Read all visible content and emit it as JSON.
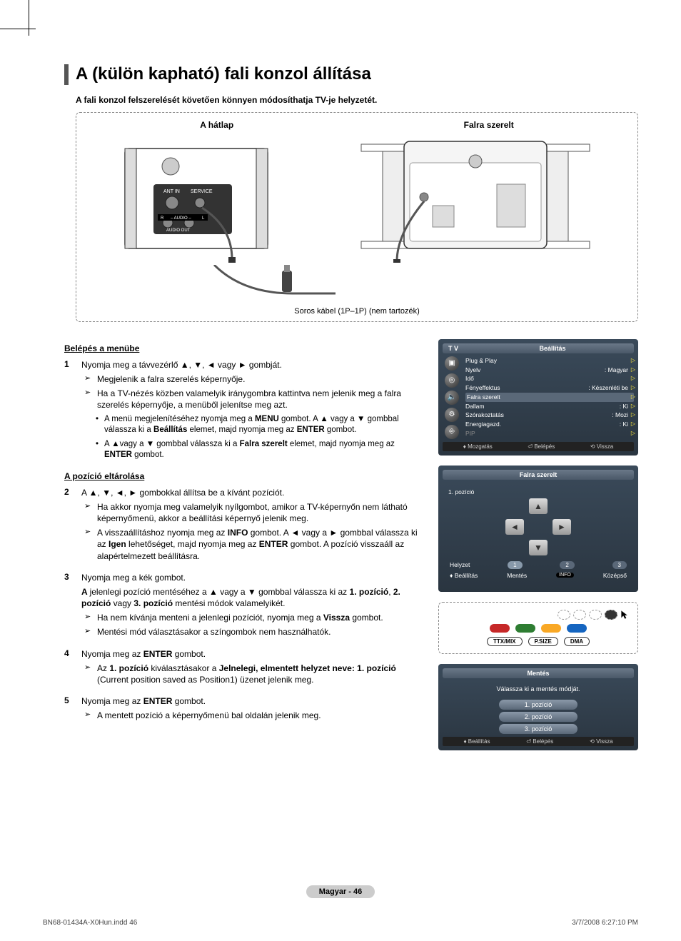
{
  "title": "A (külön kapható) fali konzol állítása",
  "subtitle": "A fali konzol felszerelését követően könnyen módosíthatja TV-je helyzetét.",
  "diagram": {
    "left_label": "A hátlap",
    "right_label": "Falra szerelt",
    "port_labels": {
      "ant": "ANT IN",
      "service": "SERVICE",
      "audio": "– AUDIO –",
      "audio_out": "AUDIO OUT",
      "r": "R",
      "l": "L"
    },
    "caption": "Soros kábel (1P–1P) (nem tartozék)"
  },
  "sections": {
    "menu_entry": "Belépés a menübe",
    "store_pos": "A pozíció eltárolása"
  },
  "steps": {
    "s1": {
      "num": "1",
      "line1": "Nyomja meg a távvezérlő ▲, ▼, ◄ vagy ► gombját.",
      "sub1": "Megjelenik a falra szerelés képernyője.",
      "sub2": "Ha a TV-nézés közben valamelyik iránygombra kattintva nem jelenik meg a falra szerelés képernyője, a menüből jelenítse meg azt.",
      "b1a": "A menü megjelenítéséhez nyomja meg a ",
      "b1b": " gombot. A ▲ vagy a ▼ gombbal válassza ki a ",
      "b1c": " elemet, majd nyomja meg az ",
      "b1d": " gombot.",
      "kw_menu": "MENU",
      "kw_beallitas": "Beállítás",
      "kw_enter": "ENTER",
      "b2a": "A ▲vagy a ▼ gombbal válassza ki a ",
      "b2b": " elemet, majd nyomja meg az ",
      "b2c": " gombot.",
      "kw_falra": "Falra szerelt"
    },
    "s2": {
      "num": "2",
      "line1": "A ▲, ▼, ◄, ► gombokkal állítsa be a kívánt pozíciót.",
      "sub1": "Ha akkor nyomja meg valamelyik nyílgombot, amikor a TV-képernyőn nem látható képernyőmenü, akkor a beállítási képernyő jelenik meg.",
      "sub2a": "A visszaállításhoz nyomja meg az ",
      "kw_info": "INFO",
      "sub2b": " gombot. A ◄ vagy a ► gombbal válassza ki az ",
      "kw_igen": "Igen",
      "sub2c": " lehetőséget, majd nyomja meg az ",
      "sub2d": " gombot. A pozíció visszaáll az alapértelmezett beállításra."
    },
    "s3": {
      "num": "3",
      "line1": "Nyomja meg a kék gombot.",
      "line2a": "A ",
      "line2b": "jelenlegi pozíció mentéséhez a ▲ vagy a ▼ gombbal válassza ki az ",
      "kw_p1": "1. pozíció",
      "kw_p2": "2. pozíció",
      "kw_p3": "3. pozíció",
      "line2c": " mentési módok valamelyikét.",
      "sub1a": "Ha nem kívánja menteni a jelenlegi pozíciót, nyomja meg a ",
      "kw_vissza": "Vissza",
      "sub1b": " gombot.",
      "sub2": "Mentési mód választásakor a színgombok nem használhatók."
    },
    "s4": {
      "num": "4",
      "line1a": "Nyomja meg az ",
      "line1b": " gombot.",
      "sub1a": "Az ",
      "sub1b": " kiválasztásakor a ",
      "kw_saved": "Jelnelegi, elmentett helyzet neve: 1. pozíció",
      "sub1c": " (Current position saved as Position1) üzenet jelenik meg."
    },
    "s5": {
      "num": "5",
      "line1a": "Nyomja meg az ",
      "line1b": " gombot.",
      "sub1": "A mentett pozíció a képernyőmenü bal oldalán jelenik meg."
    }
  },
  "osd1": {
    "tv": "T V",
    "header": "Beállítás",
    "items": [
      {
        "l": "Plug & Play",
        "r": ""
      },
      {
        "l": "Nyelv",
        "r": ": Magyar"
      },
      {
        "l": "Idő",
        "r": ""
      },
      {
        "l": "Fényeffektus",
        "r": ": Készenléti be"
      },
      {
        "l": "Falra szerelt",
        "r": "",
        "hl": true
      },
      {
        "l": "Dallam",
        "r": ": Ki"
      },
      {
        "l": "Szórakoztatás",
        "r": ": Mozi"
      },
      {
        "l": "Energiagazd.",
        "r": ": Ki"
      },
      {
        "l": "PIP",
        "r": "",
        "dim": true
      }
    ],
    "foot": {
      "a": "Mozgatás",
      "b": "Belépés",
      "c": "Vissza"
    }
  },
  "osd2": {
    "header": "Falra szerelt",
    "pos_label": "1. pozíció",
    "row1": {
      "l": "Helyzet",
      "p1": "1",
      "p2": "2",
      "p3": "3"
    },
    "row2": {
      "l": "Beállítás",
      "m": "Mentés",
      "info": "INFO",
      "r": "Középső"
    }
  },
  "remote": {
    "b1": "TTX/MIX",
    "b2": "P.SIZE",
    "b3": "DMA"
  },
  "osd3": {
    "header": "Mentés",
    "msg": "Válassza ki a mentés módját.",
    "p1": "1. pozíció",
    "p2": "2. pozíció",
    "p3": "3. pozíció",
    "foot": {
      "a": "Beállítás",
      "b": "Belépés",
      "c": "Vissza"
    }
  },
  "footer": "Magyar - 46",
  "print": {
    "file": "BN68-01434A-X0Hun.indd   46",
    "ts": "3/7/2008   6:27:10 PM"
  }
}
